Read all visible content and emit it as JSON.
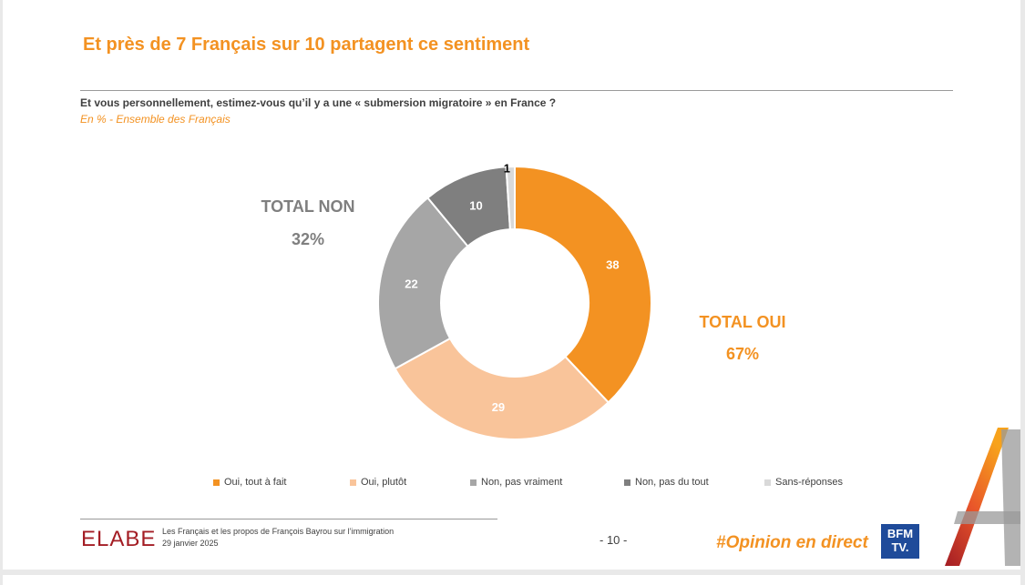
{
  "slide": {
    "title": "Et près de 7 Français sur 10 partagent ce sentiment",
    "question": "Et vous personnellement, estimez-vous qu’il y a une « submersion migratoire » en France ?",
    "subtitle": "En % - Ensemble des Français"
  },
  "totals": {
    "non_label": "TOTAL NON",
    "non_value": "32%",
    "oui_label": "TOTAL OUI",
    "oui_value": "67%"
  },
  "chart_data": {
    "type": "pie",
    "variant": "donut",
    "start_angle": "top, clockwise",
    "categories": [
      "Oui, tout à fait",
      "Oui, plutôt",
      "Non, pas vraiment",
      "Non, pas du tout",
      "Sans-réponses"
    ],
    "values": [
      38,
      29,
      22,
      10,
      1
    ],
    "labels": [
      "38",
      "29",
      "22",
      "10",
      "1"
    ],
    "colors": [
      "#f39222",
      "#f9c49a",
      "#a6a6a6",
      "#7f7f7f",
      "#d9d9d9"
    ],
    "label_colors": [
      "#ffffff",
      "#ffffff",
      "#ffffff",
      "#ffffff",
      "#000000"
    ],
    "legend_position": "bottom"
  },
  "footer": {
    "logo": "ELABE",
    "line1": "Les Français et les propos de François Bayrou sur l’immigration",
    "line2": "29 janvier 2025",
    "page": "- 10 -",
    "hashtag": "#Opinion en direct",
    "bfm_logo_line1": "BFM",
    "bfm_logo_line2": "TV."
  },
  "colors": {
    "accent": "#f39222",
    "brand_red": "#a31d24",
    "bfm_blue": "#1f4b9a"
  }
}
